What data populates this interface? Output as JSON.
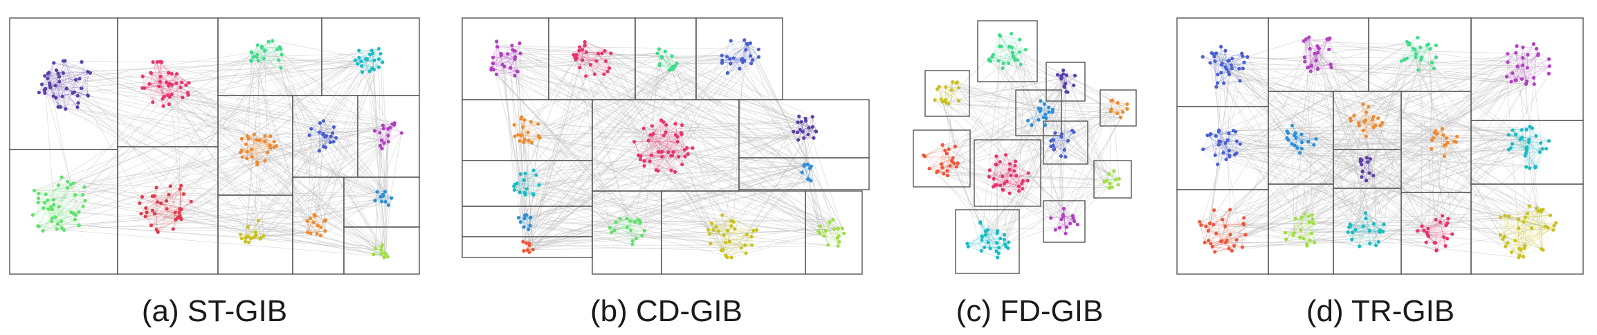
{
  "panels": [
    {
      "id": "a",
      "caption": "(a) ST-GIB"
    },
    {
      "id": "b",
      "caption": "(b) CD-GIB"
    },
    {
      "id": "c",
      "caption": "(c) FD-GIB"
    },
    {
      "id": "d",
      "caption": "(d) TR-GIB"
    }
  ],
  "colors": {
    "box_border": "#555555",
    "edge": "#bdbdbd",
    "caption": "#1a1a1a",
    "purple_dark": "#5b3fa8",
    "pink": "#e8336f",
    "green_mint": "#3fdc8a",
    "teal": "#17bcc6",
    "orange": "#f08a2e",
    "blue": "#4a5fd0",
    "magenta": "#b23fc2",
    "green_light": "#5fe36a",
    "red": "#e23a4a",
    "yellow": "#c9c21e",
    "lime": "#9ee040",
    "blue_light": "#2b8fd8",
    "red_orange": "#f0553a"
  }
}
